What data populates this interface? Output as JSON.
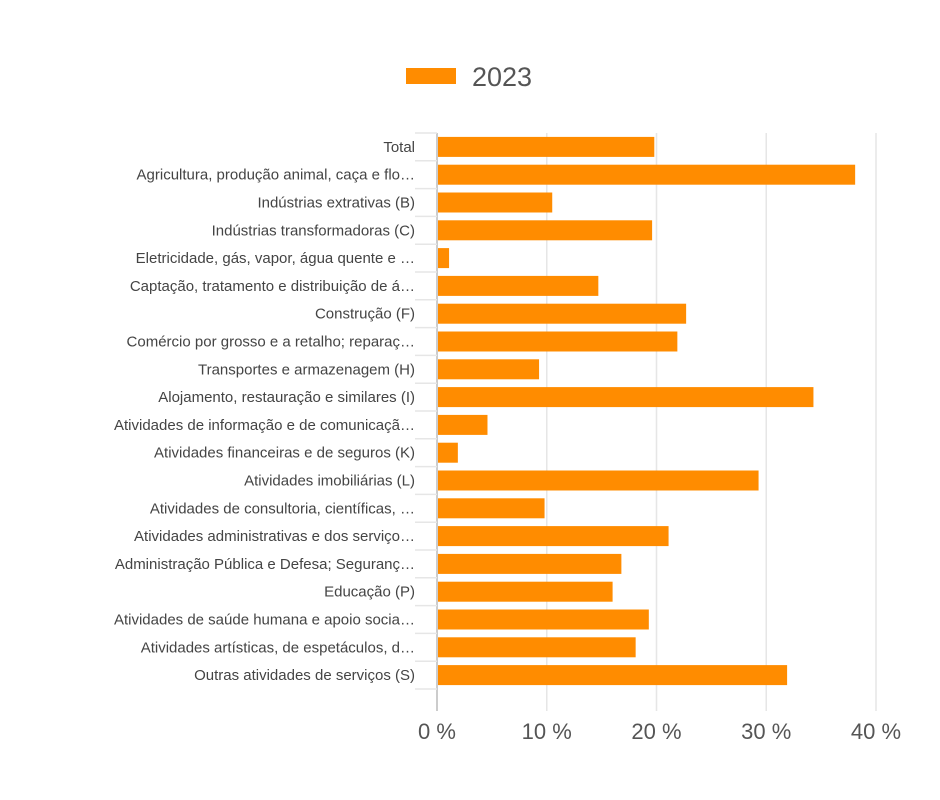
{
  "chart_data": {
    "type": "bar",
    "orientation": "horizontal",
    "categories": [
      "Total",
      "Agricultura, produção animal, caça e flo…",
      "Indústrias extrativas (B)",
      "Indústrias transformadoras (C)",
      "Eletricidade, gás, vapor, água quente e …",
      "Captação, tratamento e distribuição de á…",
      "Construção (F)",
      "Comércio por grosso e a retalho; reparaç…",
      "Transportes e armazenagem (H)",
      "Alojamento, restauração e similares (I)",
      "Atividades de informação e de comunicaçã…",
      "Atividades financeiras e de seguros (K)",
      "Atividades imobiliárias (L)",
      "Atividades de consultoria, científicas, …",
      "Atividades administrativas e dos serviço…",
      "Administração Pública e Defesa; Seguranç…",
      "Educação (P)",
      "Atividades de saúde humana e apoio socia…",
      "Atividades artísticas, de espetáculos, d…",
      "Outras atividades de serviços (S)"
    ],
    "series": [
      {
        "name": "2023",
        "color": "#ff8c00",
        "values": [
          19.8,
          38.1,
          10.5,
          19.6,
          1.1,
          14.7,
          22.7,
          21.9,
          9.3,
          34.3,
          4.6,
          1.9,
          29.3,
          9.8,
          21.1,
          16.8,
          16.0,
          19.3,
          18.1,
          31.9
        ]
      }
    ],
    "xlim": [
      0,
      40
    ],
    "xticks": [
      "0 %",
      "10 %",
      "20 %",
      "30 %",
      "40 %"
    ],
    "xtick_values": [
      0,
      10,
      20,
      30,
      40
    ],
    "grid": true,
    "legend": "top-center",
    "legend_label": "2023"
  }
}
